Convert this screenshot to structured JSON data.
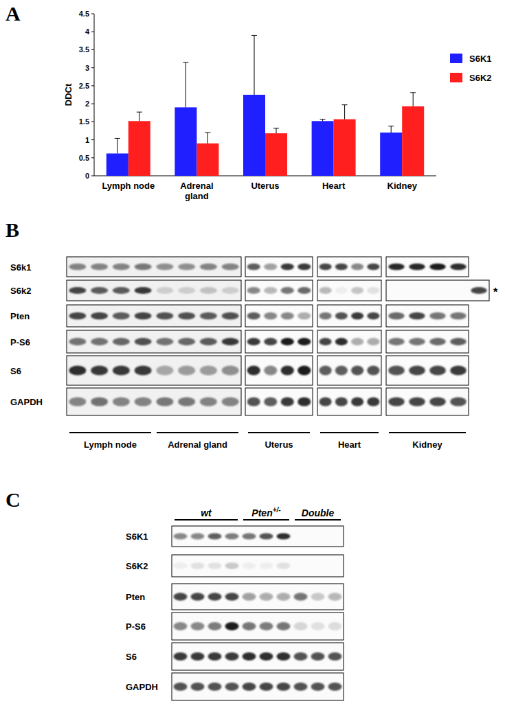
{
  "chart_data": {
    "type": "bar",
    "panel_label": "A",
    "y_label": "DDCt",
    "categories": [
      "Lymph node",
      "Adrenal gland",
      "Uterus",
      "Heart",
      "Kidney"
    ],
    "series": [
      {
        "name": "S6K1",
        "color": "#1f1fff",
        "values": [
          0.62,
          1.9,
          2.25,
          1.52,
          1.2
        ],
        "errors": [
          0.42,
          1.25,
          1.65,
          0.05,
          0.18
        ]
      },
      {
        "name": "S6K2",
        "color": "#ff1f1f",
        "values": [
          1.52,
          0.9,
          1.18,
          1.57,
          1.93
        ],
        "errors": [
          0.25,
          0.3,
          0.14,
          0.4,
          0.38
        ]
      }
    ],
    "ylim": [
      0,
      4.5
    ],
    "yticks": [
      0,
      0.5,
      1,
      1.5,
      2,
      2.5,
      3,
      3.5,
      4,
      4.5
    ],
    "grid": false,
    "legend": "upper right"
  },
  "western_blot_B": {
    "label": "B",
    "rows": [
      "S6k1",
      "S6k2",
      "Pten",
      "P-S6",
      "S6",
      "GAPDH"
    ],
    "panels": [
      {
        "tissues": [
          "Lymph node",
          "Adrenal gland"
        ],
        "bands": [
          [
            0.5,
            0.5,
            0.5,
            0.55,
            0.45,
            0.45,
            0.5,
            0.5
          ],
          [
            0.8,
            0.7,
            0.7,
            0.85,
            0.15,
            0.15,
            0.2,
            0.15
          ],
          [
            0.8,
            0.8,
            0.7,
            0.8,
            0.75,
            0.75,
            0.7,
            0.75
          ],
          [
            0.6,
            0.6,
            0.65,
            0.75,
            0.6,
            0.65,
            0.7,
            0.85
          ],
          [
            0.9,
            0.85,
            0.85,
            0.85,
            0.35,
            0.4,
            0.4,
            0.45
          ],
          [
            0.5,
            0.6,
            0.5,
            0.5,
            0.55,
            0.55,
            0.5,
            0.5
          ]
        ]
      },
      {
        "tissues": [
          "Uterus"
        ],
        "bands": [
          [
            0.7,
            0.4,
            0.85,
            0.85
          ],
          [
            0.5,
            0.3,
            0.6,
            0.65
          ],
          [
            0.7,
            0.5,
            0.5,
            0.35
          ],
          [
            0.85,
            0.8,
            1,
            1
          ],
          [
            0.9,
            0.5,
            0.9,
            1
          ],
          [
            0.75,
            0.7,
            0.85,
            0.9
          ]
        ]
      },
      {
        "tissues": [
          "Heart"
        ],
        "bands": [
          [
            0.8,
            0.8,
            0.5,
            0.8
          ],
          [
            0.3,
            0.05,
            0.25,
            0.1
          ],
          [
            0.6,
            0.75,
            0.85,
            0.8
          ],
          [
            0.8,
            0.9,
            0.35,
            0.35
          ],
          [
            0.7,
            0.7,
            0.75,
            0.75
          ],
          [
            0.8,
            0.8,
            0.85,
            0.85
          ]
        ]
      },
      {
        "tissues": [
          "Kidney"
        ],
        "bands": [
          [
            0.95,
            0.95,
            1,
            0.9
          ],
          [
            0,
            0,
            0,
            0,
            0.8
          ],
          [
            0.65,
            0.8,
            0.6,
            0.6
          ],
          [
            0.6,
            0.6,
            0.65,
            0.7
          ],
          [
            0.75,
            0.8,
            0.8,
            0.85
          ],
          [
            0.8,
            0.8,
            0.8,
            0.75
          ]
        ],
        "annotation": {
          "text": "*",
          "row": 1
        }
      }
    ]
  },
  "western_blot_C": {
    "label": "C",
    "rows": [
      "S6K1",
      "S6K2",
      "Pten",
      "P-S6",
      "S6",
      "GAPDH"
    ],
    "genotypes": [
      {
        "text": "wt",
        "lanes": 4
      },
      {
        "text": "Pten",
        "sup": "+/-",
        "lanes": 3
      },
      {
        "text": "Double",
        "lanes": 3
      }
    ],
    "bands": [
      [
        0.5,
        0.5,
        0.7,
        0.55,
        0.6,
        0.75,
        0.9,
        0,
        0,
        0
      ],
      [
        0.05,
        0.1,
        0.1,
        0.2,
        0.05,
        0.05,
        0.1,
        0,
        0,
        0
      ],
      [
        0.8,
        0.8,
        0.8,
        0.8,
        0.4,
        0.35,
        0.35,
        0.6,
        0.2,
        0.3
      ],
      [
        0.5,
        0.5,
        0.55,
        1,
        0.6,
        0.55,
        0.6,
        0.15,
        0.1,
        0.12
      ],
      [
        0.85,
        0.85,
        0.85,
        0.85,
        0.9,
        0.9,
        0.9,
        0.75,
        0.75,
        0.75
      ],
      [
        0.75,
        0.75,
        0.75,
        0.75,
        0.8,
        0.8,
        0.8,
        0.75,
        0.75,
        0.75
      ]
    ]
  }
}
